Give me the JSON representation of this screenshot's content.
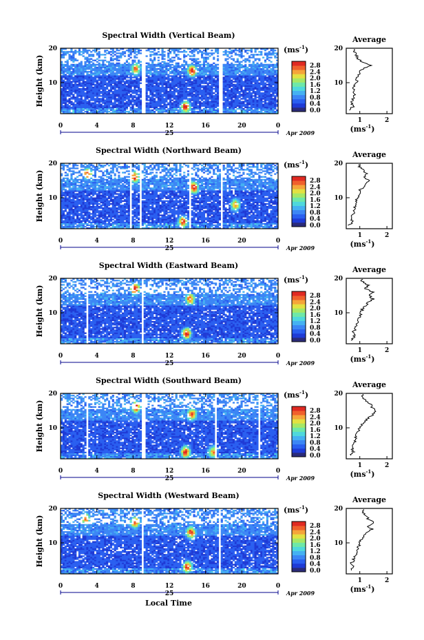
{
  "figure": {
    "x_label": "Local Time",
    "y_label": "Height (km)",
    "date_day": "25",
    "date_month_year": "Apr 2009",
    "unit_label": "(ms",
    "unit_exp": "-1",
    "avg_title": "Average",
    "avg_unit": "(ms",
    "avg_unit_exp": "-1"
  },
  "colors": {
    "colormap": [
      "#2b2b7a",
      "#1f3bd6",
      "#2a5ff0",
      "#3c86f5",
      "#45b1f2",
      "#4fd8dc",
      "#6ee8a8",
      "#a6e866",
      "#e3e142",
      "#f5a53a",
      "#f0602c",
      "#e02a22"
    ]
  },
  "chart_data": [
    {
      "type": "heatmap",
      "title": "Spectral Width (Vertical Beam)",
      "xlabel": "",
      "ylabel": "Height (km)",
      "xlim": [
        0,
        24
      ],
      "ylim": [
        1,
        20
      ],
      "x_ticks": [
        "0",
        "4",
        "8",
        "12",
        "16",
        "20",
        "0"
      ],
      "y_ticks": [
        "10",
        "20"
      ],
      "colorbar": {
        "range": [
          0,
          2.8
        ],
        "ticks": [
          "2.8",
          "2.4",
          "2.0",
          "1.6",
          "1.2",
          "0.8",
          "0.4",
          "0.0"
        ]
      },
      "gaps_hours": [
        [
          9.0,
          9.3
        ],
        [
          17.5,
          17.8
        ]
      ],
      "hot_spots": [
        {
          "t": 8.3,
          "h": 14,
          "v": 2.2
        },
        {
          "t": 14.5,
          "h": 13.5,
          "v": 2.6
        },
        {
          "t": 13.8,
          "h": 3,
          "v": 2.6
        }
      ],
      "average_profile": {
        "xlim": [
          0.5,
          2.2
        ],
        "x_ticks": [
          "1",
          "2"
        ],
        "y_ticks": [
          "10",
          "20"
        ],
        "height": [
          2,
          3,
          4,
          5,
          6,
          7,
          8,
          9,
          10,
          11,
          12,
          13,
          14,
          15,
          16,
          17,
          18,
          19
        ],
        "value": [
          0.62,
          0.75,
          0.7,
          0.72,
          0.78,
          0.8,
          0.75,
          0.8,
          0.85,
          0.9,
          0.95,
          1.0,
          1.1,
          1.45,
          1.1,
          0.95,
          0.85,
          0.8
        ]
      }
    },
    {
      "type": "heatmap",
      "title": "Spectral Width (Northward Beam)",
      "xlabel": "",
      "ylabel": "Height (km)",
      "xlim": [
        0,
        24
      ],
      "ylim": [
        1,
        20
      ],
      "x_ticks": [
        "0",
        "4",
        "8",
        "12",
        "16",
        "20",
        "0"
      ],
      "y_ticks": [
        "10",
        "20"
      ],
      "colorbar": {
        "range": [
          0,
          2.8
        ],
        "ticks": [
          "2.8",
          "2.4",
          "2.0",
          "1.6",
          "1.2",
          "0.8",
          "0.4",
          "0.0"
        ]
      },
      "gaps_hours": [
        [
          7.6,
          7.9
        ],
        [
          8.7,
          8.9
        ],
        [
          14.2,
          14.4
        ],
        [
          17.6,
          17.8
        ]
      ],
      "hot_spots": [
        {
          "t": 3.0,
          "h": 17,
          "v": 2.4
        },
        {
          "t": 8.2,
          "h": 16,
          "v": 2.5
        },
        {
          "t": 14.7,
          "h": 13,
          "v": 2.6
        },
        {
          "t": 13.5,
          "h": 3,
          "v": 2.4
        },
        {
          "t": 19.3,
          "h": 8,
          "v": 2.1
        }
      ],
      "average_profile": {
        "xlim": [
          0.5,
          2.2
        ],
        "x_ticks": [
          "1",
          "2"
        ],
        "y_ticks": [
          "10",
          "20"
        ],
        "height": [
          2,
          3,
          4,
          5,
          6,
          7,
          8,
          9,
          10,
          11,
          12,
          13,
          14,
          15,
          16,
          17,
          18,
          19
        ],
        "value": [
          0.6,
          0.72,
          0.7,
          0.74,
          0.78,
          0.8,
          0.82,
          0.85,
          0.9,
          0.95,
          1.0,
          1.1,
          1.2,
          1.35,
          1.15,
          1.3,
          1.1,
          1.0
        ]
      }
    },
    {
      "type": "heatmap",
      "title": "Spectral Width (Eastward Beam)",
      "xlabel": "",
      "ylabel": "Height (km)",
      "xlim": [
        0,
        24
      ],
      "ylim": [
        1,
        20
      ],
      "x_ticks": [
        "0",
        "4",
        "8",
        "12",
        "16",
        "20",
        "0"
      ],
      "y_ticks": [
        "10",
        "20"
      ],
      "colorbar": {
        "range": [
          0,
          2.8
        ],
        "ticks": [
          "2.8",
          "2.4",
          "2.0",
          "1.6",
          "1.2",
          "0.8",
          "0.4",
          "0.0"
        ]
      },
      "gaps_hours": [
        [
          2.8,
          3.1
        ],
        [
          8.9,
          9.2
        ]
      ],
      "hot_spots": [
        {
          "t": 8.2,
          "h": 17,
          "v": 2.7
        },
        {
          "t": 14.3,
          "h": 14,
          "v": 2.4
        },
        {
          "t": 13.9,
          "h": 4,
          "v": 2.6
        }
      ],
      "average_profile": {
        "xlim": [
          0.5,
          2.2
        ],
        "x_ticks": [
          "1",
          "2"
        ],
        "y_ticks": [
          "10",
          "20"
        ],
        "height": [
          2,
          3,
          4,
          5,
          6,
          7,
          8,
          9,
          10,
          11,
          12,
          13,
          14,
          15,
          16,
          17,
          18,
          19
        ],
        "value": [
          0.7,
          0.8,
          0.75,
          0.8,
          0.85,
          0.9,
          0.95,
          1.0,
          1.05,
          1.1,
          1.2,
          1.3,
          1.5,
          1.35,
          1.5,
          1.2,
          1.3,
          1.1
        ]
      }
    },
    {
      "type": "heatmap",
      "title": "Spectral Width (Southward Beam)",
      "xlabel": "",
      "ylabel": "Height (km)",
      "xlim": [
        0,
        24
      ],
      "ylim": [
        1,
        20
      ],
      "x_ticks": [
        "0",
        "4",
        "8",
        "12",
        "16",
        "20",
        "0"
      ],
      "y_ticks": [
        "10",
        "20"
      ],
      "colorbar": {
        "range": [
          0,
          2.8
        ],
        "ticks": [
          "2.8",
          "2.4",
          "2.0",
          "1.6",
          "1.2",
          "0.8",
          "0.4",
          "0.0"
        ]
      },
      "gaps_hours": [
        [
          2.8,
          3.0
        ],
        [
          9.0,
          9.3
        ],
        [
          17.0,
          17.3
        ],
        [
          21.8,
          22.0
        ]
      ],
      "hot_spots": [
        {
          "t": 8.3,
          "h": 16,
          "v": 2.5
        },
        {
          "t": 14.5,
          "h": 14,
          "v": 2.5
        },
        {
          "t": 13.8,
          "h": 3,
          "v": 2.6
        },
        {
          "t": 16.8,
          "h": 3,
          "v": 2.1
        }
      ],
      "average_profile": {
        "xlim": [
          0.5,
          2.2
        ],
        "x_ticks": [
          "1",
          "2"
        ],
        "y_ticks": [
          "10",
          "20"
        ],
        "height": [
          2,
          3,
          4,
          5,
          6,
          7,
          8,
          9,
          10,
          11,
          12,
          13,
          14,
          15,
          16,
          17,
          18,
          19
        ],
        "value": [
          0.65,
          0.75,
          0.72,
          0.76,
          0.8,
          0.85,
          0.9,
          0.95,
          1.0,
          1.1,
          1.2,
          1.35,
          1.5,
          1.6,
          1.45,
          1.4,
          1.2,
          1.1
        ]
      }
    },
    {
      "type": "heatmap",
      "title": "Spectral Width (Westward Beam)",
      "xlabel": "Local Time",
      "ylabel": "Height (km)",
      "xlim": [
        0,
        24
      ],
      "ylim": [
        1,
        20
      ],
      "x_ticks": [
        "0",
        "4",
        "8",
        "12",
        "16",
        "20",
        "0"
      ],
      "y_ticks": [
        "10",
        "20"
      ],
      "colorbar": {
        "range": [
          0,
          2.8
        ],
        "ticks": [
          "2.8",
          "2.4",
          "2.0",
          "1.6",
          "1.2",
          "0.8",
          "0.4",
          "0.0"
        ]
      },
      "gaps_hours": [
        [
          8.9,
          9.2
        ],
        [
          17.5,
          17.7
        ]
      ],
      "hot_spots": [
        {
          "t": 2.8,
          "h": 17,
          "v": 2.3
        },
        {
          "t": 8.2,
          "h": 16,
          "v": 2.4
        },
        {
          "t": 14.4,
          "h": 13,
          "v": 2.6
        },
        {
          "t": 14.0,
          "h": 3,
          "v": 2.5
        }
      ],
      "average_profile": {
        "xlim": [
          0.5,
          2.2
        ],
        "x_ticks": [
          "1",
          "2"
        ],
        "y_ticks": [
          "10",
          "20"
        ],
        "height": [
          2,
          3,
          4,
          5,
          6,
          7,
          8,
          9,
          10,
          11,
          12,
          13,
          14,
          15,
          16,
          17,
          18,
          19
        ],
        "value": [
          0.65,
          0.75,
          0.7,
          0.75,
          0.8,
          0.85,
          0.9,
          0.95,
          1.0,
          1.05,
          1.15,
          1.3,
          1.45,
          1.3,
          1.55,
          1.3,
          1.2,
          1.1
        ]
      }
    }
  ]
}
